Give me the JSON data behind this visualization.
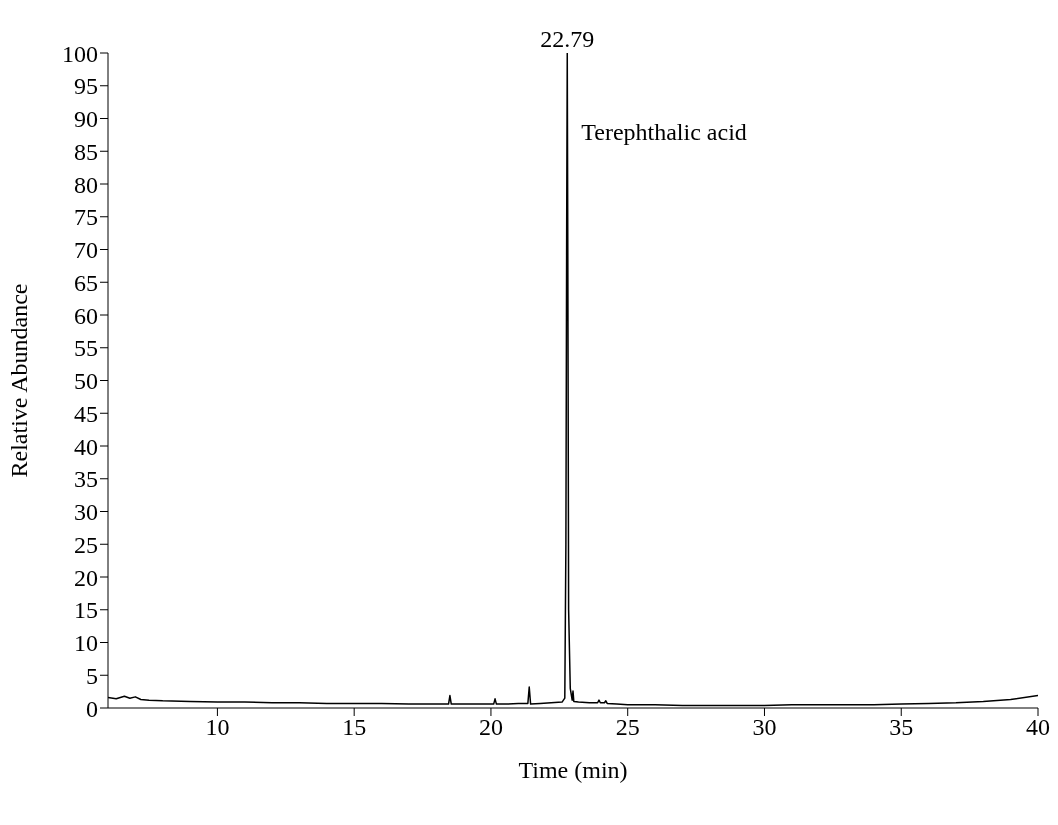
{
  "chart_data": {
    "type": "line",
    "xlabel": "Time (min)",
    "ylabel": "Relative Abundance",
    "xlim": [
      6,
      40
    ],
    "xticks": [
      10,
      15,
      20,
      25,
      30,
      35,
      40
    ],
    "ylim": [
      0,
      100
    ],
    "yticks": [
      0,
      5,
      10,
      15,
      20,
      25,
      30,
      35,
      40,
      45,
      50,
      55,
      60,
      65,
      70,
      75,
      80,
      85,
      90,
      95,
      100
    ],
    "grid": false,
    "legend": false,
    "marker": "none",
    "line_style": "solid",
    "annotations": [
      {
        "text": "22.79",
        "x": 22.79,
        "y": 100
      },
      {
        "text": "Terephthalic acid",
        "x": 22.79,
        "y": 88
      }
    ],
    "series": [
      {
        "color": "#000000",
        "x": [
          6,
          6.3,
          6.6,
          6.8,
          7,
          7.2,
          7.5,
          8,
          9,
          10,
          11,
          12,
          13,
          14,
          15,
          16,
          17,
          18,
          18.45,
          18.5,
          18.55,
          19,
          19.5,
          20.1,
          20.15,
          20.2,
          20.6,
          21,
          21.35,
          21.4,
          21.45,
          21.8,
          22.2,
          22.6,
          22.7,
          22.74,
          22.77,
          22.79,
          22.81,
          22.84,
          22.9,
          22.97,
          23.0,
          23.03,
          23.2,
          23.6,
          23.9,
          23.95,
          24,
          24.15,
          24.2,
          24.25,
          24.6,
          25,
          26,
          27,
          28,
          29,
          30,
          31,
          32,
          33,
          34,
          35,
          36,
          37,
          38,
          39,
          40
        ],
        "values": [
          1.6,
          1.4,
          1.8,
          1.5,
          1.7,
          1.3,
          1.2,
          1.1,
          1.0,
          0.9,
          0.9,
          0.8,
          0.8,
          0.7,
          0.7,
          0.7,
          0.6,
          0.6,
          0.6,
          1.9,
          0.6,
          0.6,
          0.6,
          0.6,
          1.4,
          0.6,
          0.6,
          0.7,
          0.7,
          3.2,
          0.6,
          0.7,
          0.8,
          0.9,
          1.5,
          25,
          75,
          100,
          70,
          15,
          3,
          1.2,
          2.6,
          1.0,
          0.9,
          0.8,
          0.8,
          1.2,
          0.8,
          0.8,
          1.1,
          0.7,
          0.6,
          0.5,
          0.5,
          0.4,
          0.4,
          0.4,
          0.4,
          0.5,
          0.5,
          0.5,
          0.5,
          0.6,
          0.7,
          0.8,
          1.0,
          1.3,
          1.9
        ]
      }
    ]
  }
}
